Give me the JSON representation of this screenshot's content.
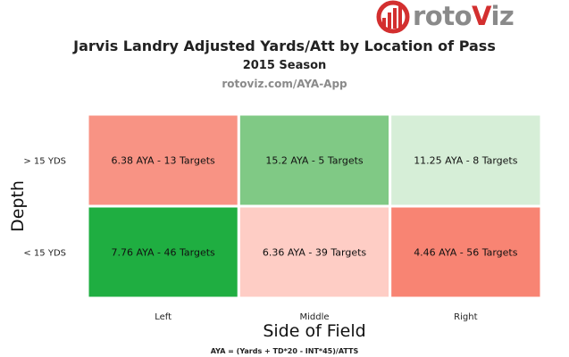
{
  "brand": {
    "text_main": "roto",
    "text_accent": "V",
    "text_end": "iz"
  },
  "chart_data": {
    "type": "heatmap",
    "title": "Jarvis Landry Adjusted Yards/Att by Location of Pass",
    "subtitle": "2015 Season",
    "source": "rotoviz.com/AYA-App",
    "xlabel": "Side of Field",
    "ylabel": "Depth",
    "x_categories": [
      "Left",
      "Middle",
      "Right"
    ],
    "y_categories": [
      "> 15 YDS",
      "< 15 YDS"
    ],
    "cells": [
      {
        "row": 0,
        "col": 0,
        "aya": 6.38,
        "targets": 13,
        "label": "6.38 AYA - 13 Targets",
        "color": "#f89384"
      },
      {
        "row": 0,
        "col": 1,
        "aya": 15.2,
        "targets": 5,
        "label": "15.2 AYA - 5 Targets",
        "color": "#80c985"
      },
      {
        "row": 0,
        "col": 2,
        "aya": 11.25,
        "targets": 8,
        "label": "11.25 AYA - 8 Targets",
        "color": "#d6eed7"
      },
      {
        "row": 1,
        "col": 0,
        "aya": 7.76,
        "targets": 46,
        "label": "7.76 AYA - 46 Targets",
        "color": "#1fae41"
      },
      {
        "row": 1,
        "col": 1,
        "aya": 6.36,
        "targets": 39,
        "label": "6.36 AYA - 39 Targets",
        "color": "#fecdc5"
      },
      {
        "row": 1,
        "col": 2,
        "aya": 4.46,
        "targets": 56,
        "label": "4.46 AYA - 56 Targets",
        "color": "#f88473"
      }
    ],
    "footnote": "AYA = (Yards + TD*20 - INT*45)/ATTS"
  },
  "colors": {
    "logo_red": "#d32f2f",
    "logo_gray": "#8a8a8a"
  }
}
